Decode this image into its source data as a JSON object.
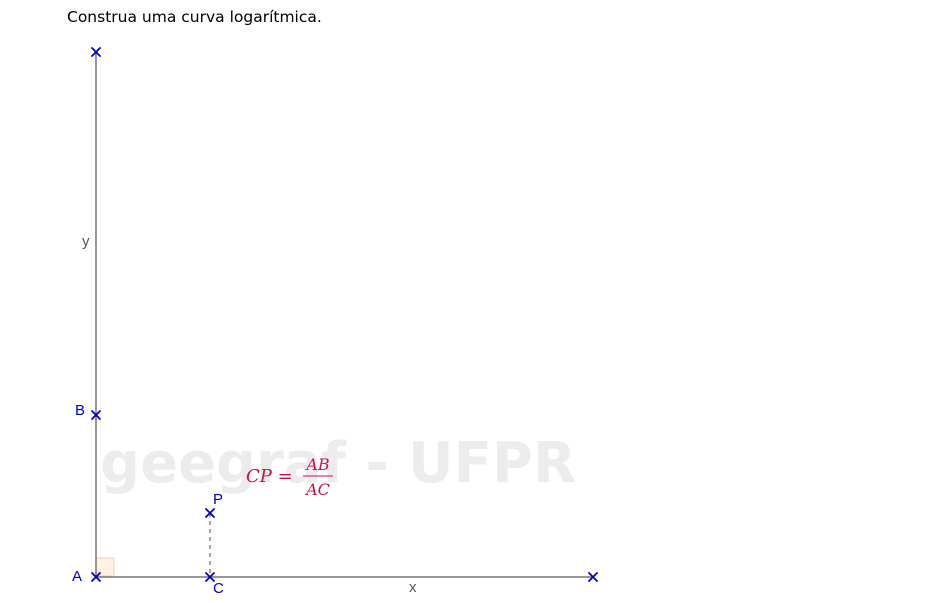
{
  "instruction": "Construa uma curva logarítmica.",
  "watermark": "geegraf - UFPR",
  "axes": {
    "x_label": "x",
    "y_label": "y"
  },
  "points": {
    "A": "A",
    "B": "B",
    "C": "C",
    "P": "P"
  },
  "formula": {
    "lhs": "CP =",
    "numerator": "AB",
    "denominator": "AC"
  },
  "colors": {
    "point": "#0000cc",
    "axis": "#777777",
    "formula": "#cc1144",
    "right_angle_fill": "#fff1e4",
    "watermark": "#ececec"
  }
}
